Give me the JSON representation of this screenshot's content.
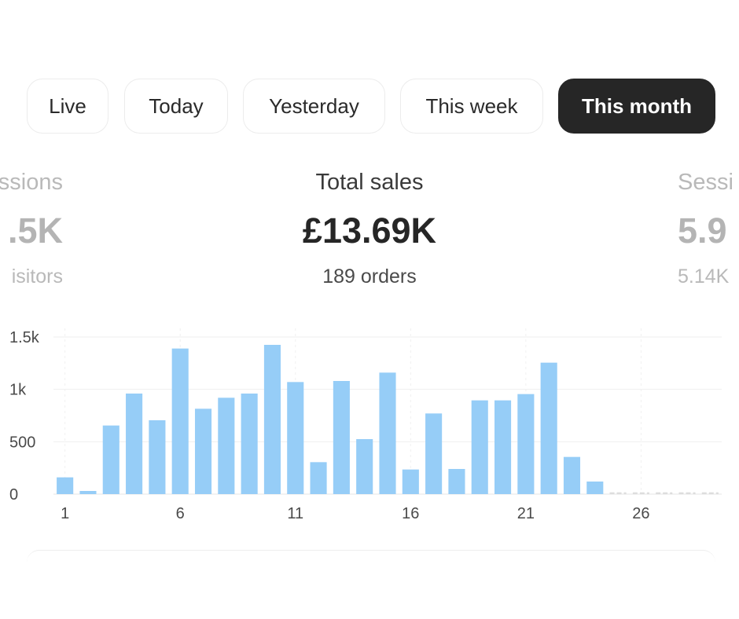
{
  "tabs": [
    {
      "label": "Live",
      "active": false
    },
    {
      "label": "Today",
      "active": false
    },
    {
      "label": "Yesterday",
      "active": false
    },
    {
      "label": "This week",
      "active": false
    },
    {
      "label": "This month",
      "active": true
    }
  ],
  "metrics": {
    "left": {
      "label": "ssions",
      "value": ".5K",
      "sub": "isitors"
    },
    "center": {
      "label": "Total sales",
      "value": "£13.69K",
      "sub": "189 orders"
    },
    "right": {
      "label": "Sessi",
      "value": "5.9",
      "sub": "5.14K"
    }
  },
  "chart_data": {
    "type": "bar",
    "x": [
      1,
      2,
      3,
      4,
      5,
      6,
      7,
      8,
      9,
      10,
      11,
      12,
      13,
      14,
      15,
      16,
      17,
      18,
      19,
      20,
      21,
      22,
      23,
      24,
      25,
      26,
      27,
      28,
      29
    ],
    "values": [
      160,
      30,
      655,
      960,
      705,
      1390,
      815,
      920,
      960,
      1425,
      1070,
      305,
      1080,
      525,
      1160,
      235,
      770,
      240,
      895,
      895,
      955,
      1255,
      355,
      120,
      0,
      0,
      0,
      0,
      0
    ],
    "xticks": [
      "1",
      "6",
      "11",
      "16",
      "21",
      "26"
    ],
    "yticks": [
      "0",
      "500",
      "1k",
      "1.5k"
    ],
    "ylim": [
      0,
      1500
    ],
    "bar_color": "#96cdf7",
    "grid": true
  }
}
